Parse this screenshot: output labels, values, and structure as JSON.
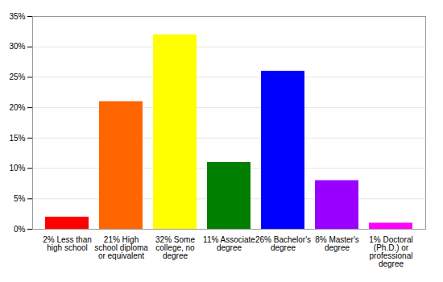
{
  "chart_data": {
    "type": "bar",
    "categories": [
      "2% Less than high school",
      "21% High school diploma or equivalent",
      "32% Some college, no degree",
      "11% Associate degree",
      "26% Bachelor's degree",
      "8% Master's degree",
      "1% Doctoral (Ph.D.) or professional degree"
    ],
    "values": [
      2,
      21,
      32,
      11,
      26,
      8,
      1
    ],
    "colors": [
      "#ff0000",
      "#ff6600",
      "#ffff00",
      "#008000",
      "#0000ff",
      "#9900ff",
      "#ff00ff"
    ],
    "ylim": [
      0,
      35
    ],
    "yticks": [
      {
        "value": 0,
        "label": "0%"
      },
      {
        "value": 5,
        "label": "5%"
      },
      {
        "value": 10,
        "label": "10%"
      },
      {
        "value": 15,
        "label": "15%"
      },
      {
        "value": 20,
        "label": "20%"
      },
      {
        "value": 25,
        "label": "25%"
      },
      {
        "value": 30,
        "label": "30%"
      },
      {
        "value": 35,
        "label": "35%"
      }
    ],
    "grid": true
  }
}
